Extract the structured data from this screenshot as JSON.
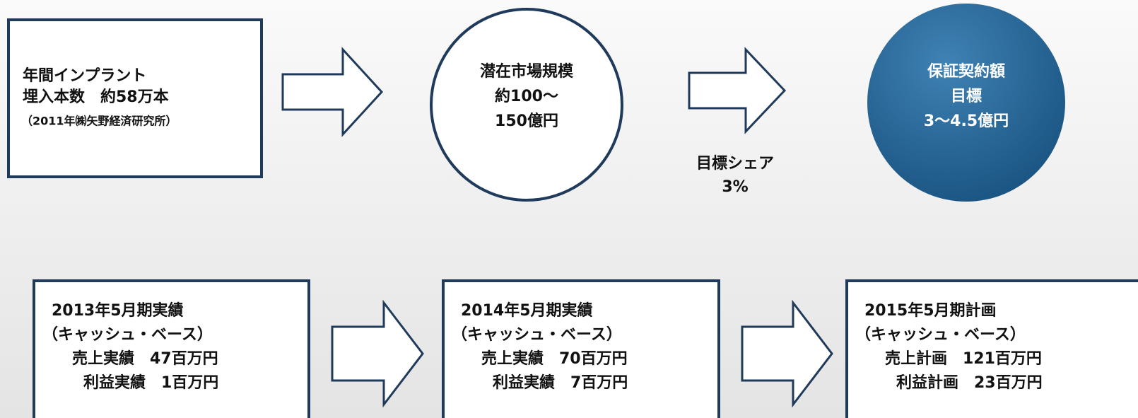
{
  "top": {
    "box": {
      "lines": [
        "年間インプラント",
        "埋入本数　約58万本",
        "（2011年㈱矢野経済研究所）"
      ]
    },
    "circle": {
      "lines": [
        "潜在市場規模",
        "約100～",
        "150億円"
      ]
    },
    "arrow_label": {
      "lines": [
        "目標シェア",
        "3%"
      ]
    },
    "goal": {
      "lines": [
        "保証契約額",
        "目標",
        "3～4.5億円"
      ]
    }
  },
  "bottom": {
    "boxes": [
      {
        "lines": [
          "2013年5月期実績",
          "（キャッシュ・ベース）",
          "売上実績　47百万円",
          "利益実績　1百万円"
        ]
      },
      {
        "lines": [
          "2014年5月期実績",
          "（キャッシュ・ベース）",
          "売上実績　70百万円",
          "利益実績　7百万円"
        ]
      },
      {
        "lines": [
          "2015年5月期計画",
          "（キャッシュ・ベース）",
          "売上計画　121百万円",
          "利益計画　23百万円"
        ]
      }
    ]
  }
}
